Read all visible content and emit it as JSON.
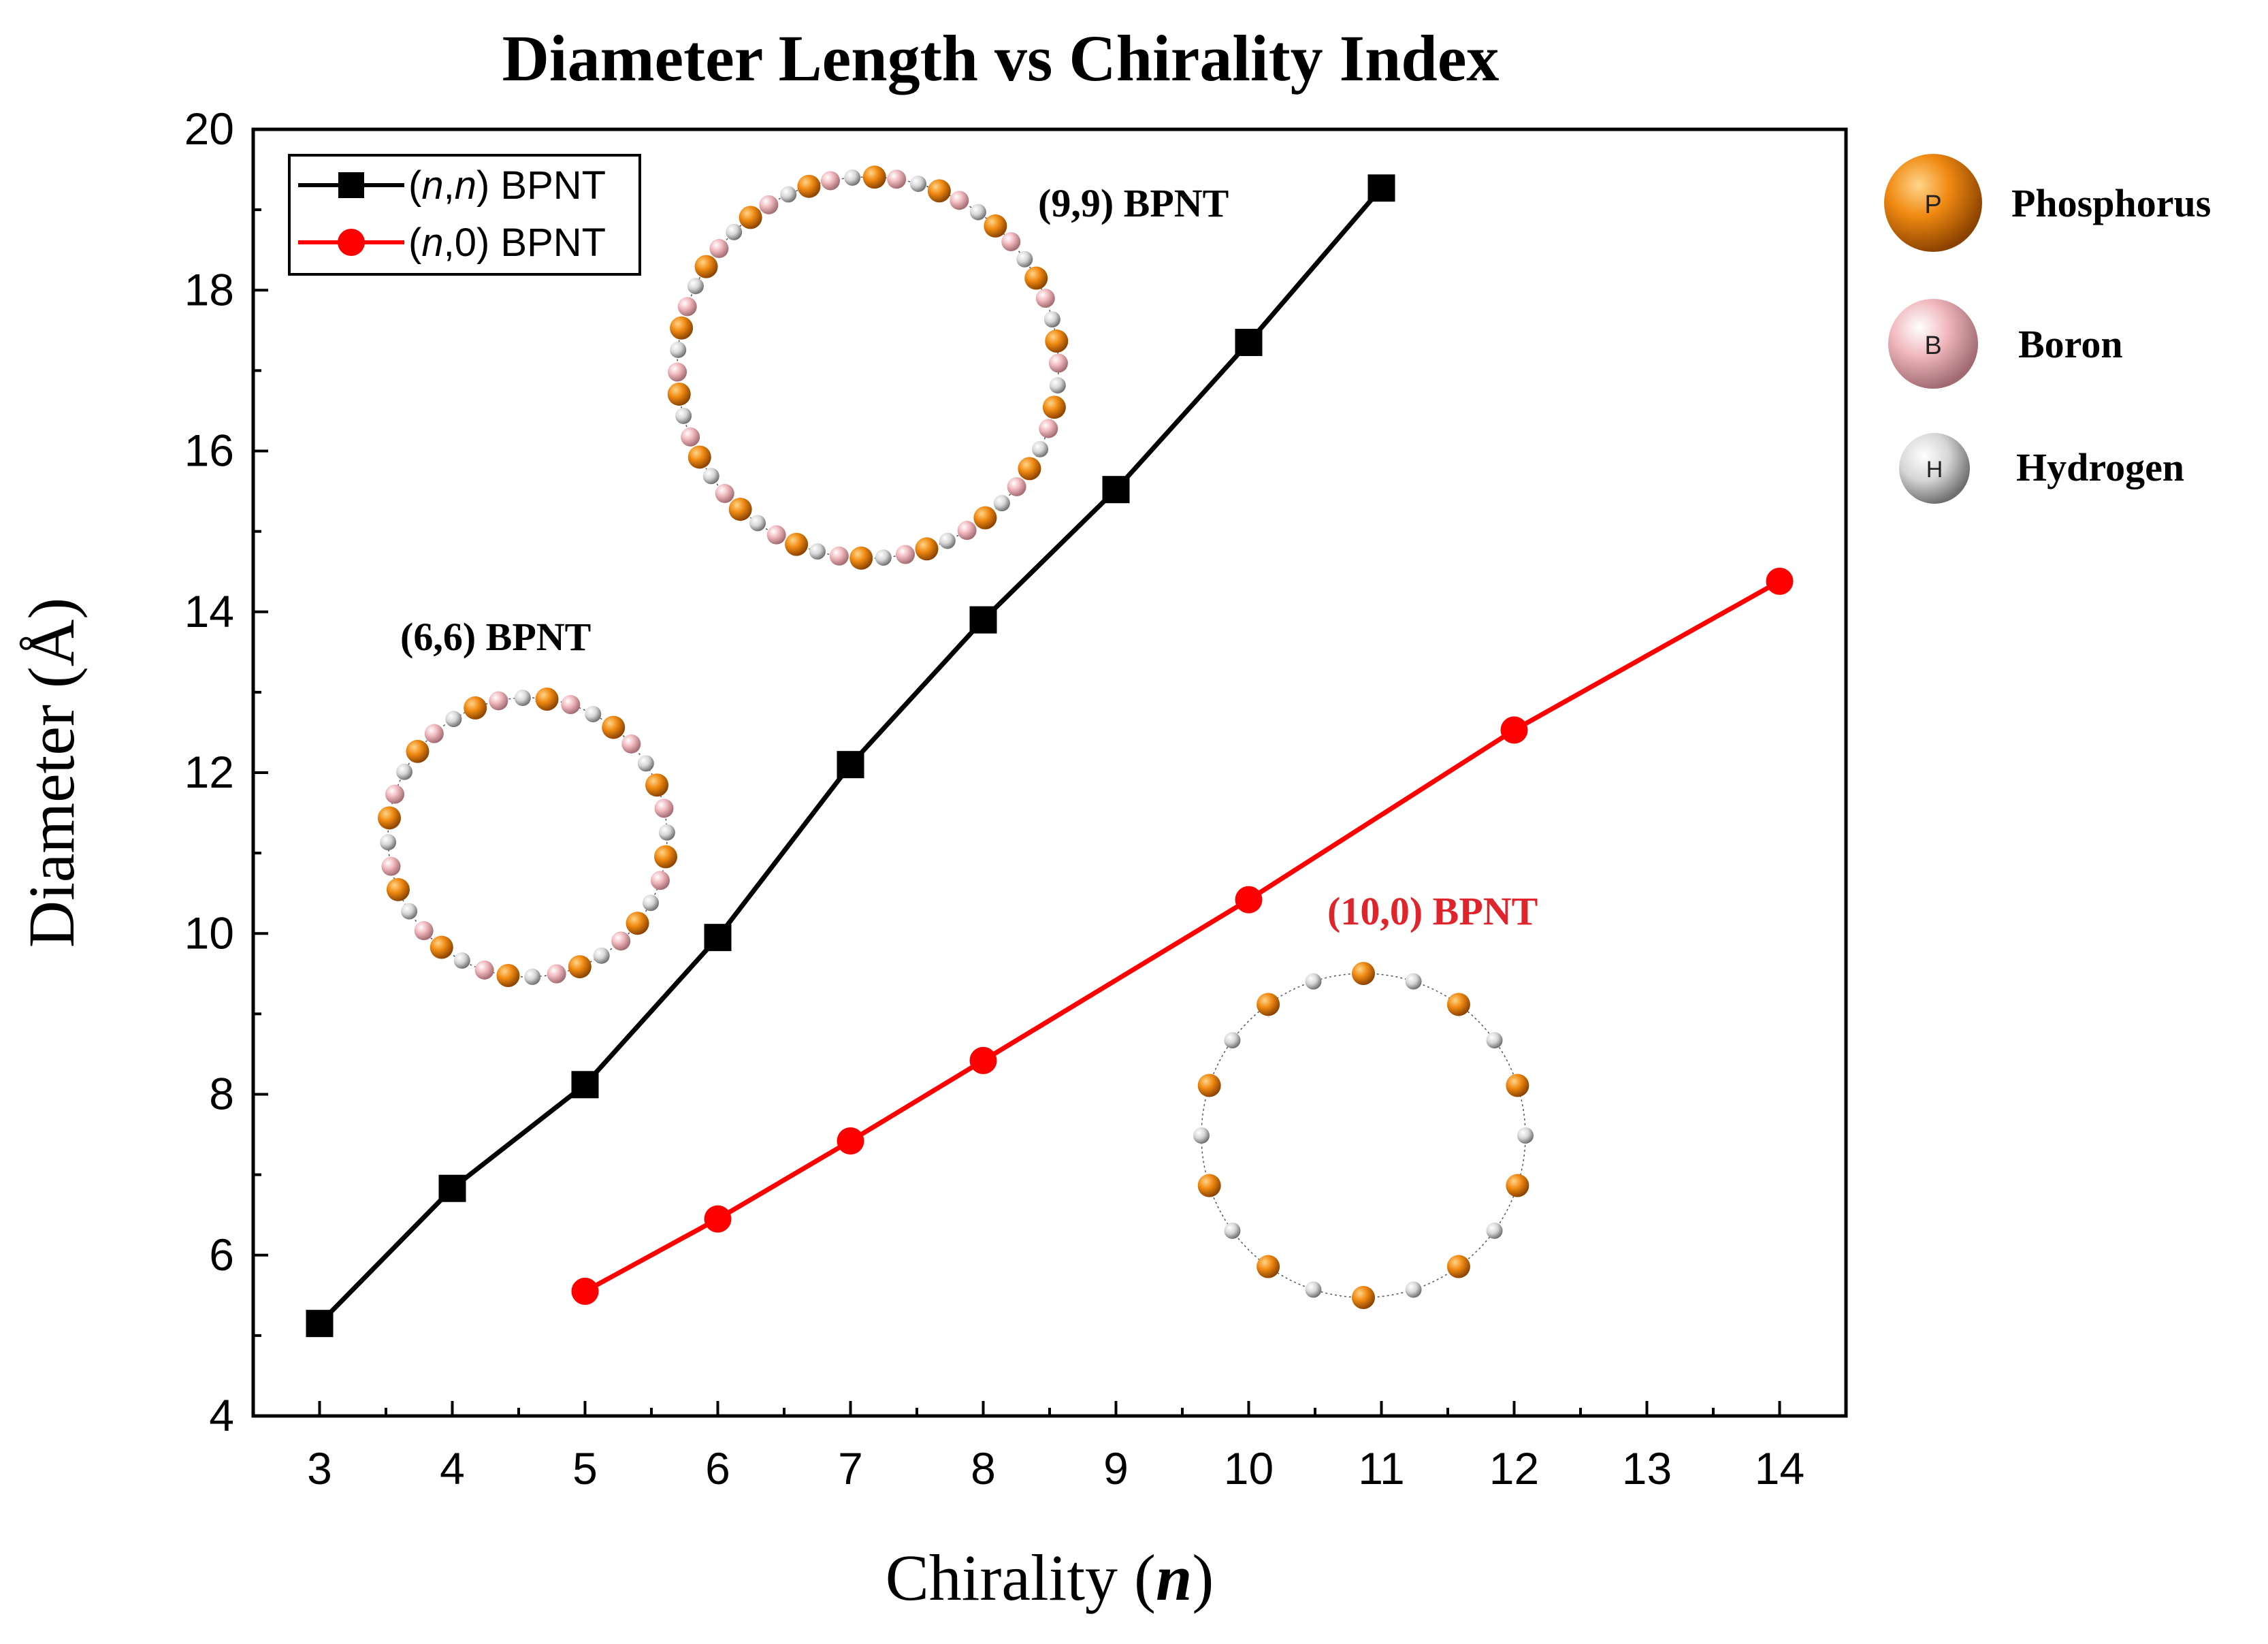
{
  "chart_data": {
    "type": "line",
    "title": "Diameter Length vs Chirality Index",
    "xlabel": "Chirality (",
    "xlabel_var": "n",
    "xlabel_close": ")",
    "ylabel": "Diameter (Å)",
    "xlim": [
      2.5,
      14.5
    ],
    "ylim": [
      4,
      20
    ],
    "xticks": [
      3,
      4,
      5,
      6,
      7,
      8,
      9,
      10,
      11,
      12,
      13,
      14
    ],
    "yticks": [
      4,
      6,
      8,
      10,
      12,
      14,
      16,
      18,
      20
    ],
    "grid": false,
    "legend_position": "top-left",
    "series": [
      {
        "name": "(n,n) BPNT",
        "legend_parts": [
          "(",
          "n",
          ",",
          "n",
          ") BPNT"
        ],
        "color": "#000000",
        "marker": "square",
        "x": [
          3,
          4,
          5,
          6,
          7,
          8,
          9,
          10,
          11
        ],
        "values": [
          5.15,
          6.83,
          8.12,
          9.95,
          12.1,
          13.9,
          15.52,
          17.35,
          19.27
        ]
      },
      {
        "name": "(n,0) BPNT",
        "legend_parts": [
          "(",
          "n",
          ",0) BPNT"
        ],
        "color": "#ff0000",
        "marker": "circle",
        "x": [
          5,
          6,
          7,
          8,
          10,
          12,
          14
        ],
        "values": [
          5.55,
          6.45,
          7.42,
          8.42,
          10.42,
          12.53,
          14.38
        ]
      }
    ],
    "annotations": [
      {
        "id": "nt99",
        "label": "(9,9) BPNT",
        "color": "#000000"
      },
      {
        "id": "nt66",
        "label": "(6,6) BPNT",
        "color": "#000000"
      },
      {
        "id": "nt100",
        "label": "(10,0) BPNT",
        "color": "#e0242c"
      }
    ],
    "atom_legend": [
      {
        "symbol": "P",
        "name": "Phosphorus",
        "color": "#e07b10"
      },
      {
        "symbol": "B",
        "name": "Boron",
        "color": "#e8aab0"
      },
      {
        "symbol": "H",
        "name": "Hydrogen",
        "color": "#bfbfbf"
      }
    ]
  }
}
